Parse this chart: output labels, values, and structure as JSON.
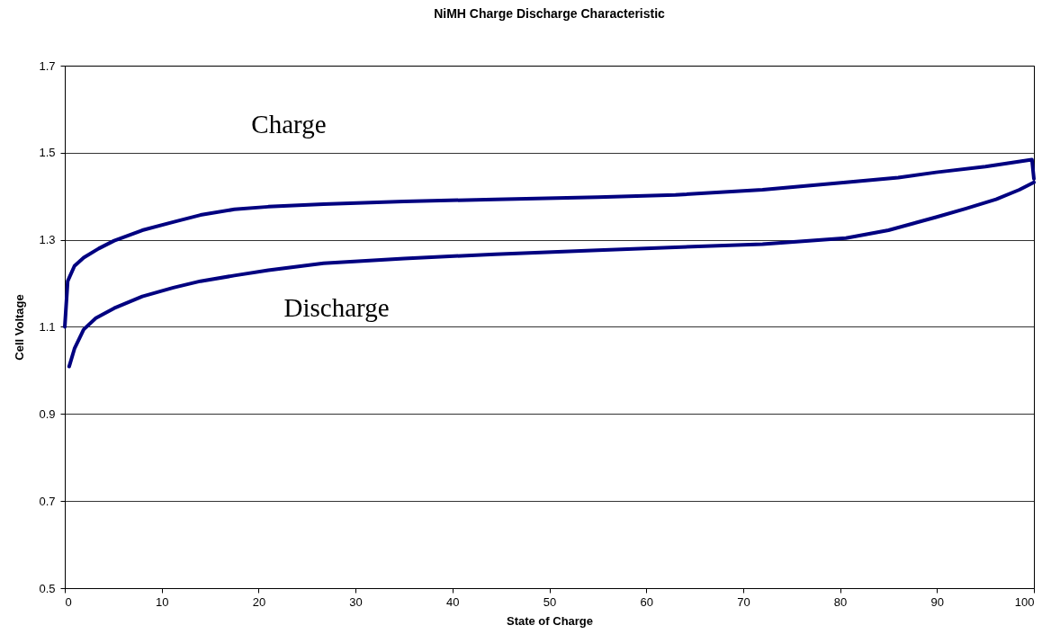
{
  "chart_data": {
    "type": "line",
    "title": "NiMH Charge Discharge Characteristic",
    "xlabel": "State of Charge",
    "ylabel": "Cell Voltage",
    "series": [
      {
        "name": "Charge",
        "color": "#000080",
        "x": [
          0,
          0.3,
          1,
          1.95,
          3.5,
          5.1,
          8,
          11.2,
          14,
          17.5,
          21,
          26.7,
          35,
          44.4,
          55,
          63,
          72,
          80.6,
          86,
          89.9,
          95,
          99.8,
          100
        ],
        "values": [
          1.1,
          1.205,
          1.24,
          1.259,
          1.28,
          1.298,
          1.322,
          1.341,
          1.357,
          1.37,
          1.376,
          1.382,
          1.388,
          1.393,
          1.398,
          1.403,
          1.415,
          1.432,
          1.443,
          1.455,
          1.468,
          1.484,
          1.44
        ]
      },
      {
        "name": "Discharge",
        "color": "#000080",
        "x": [
          0.45,
          1,
          1.95,
          3.2,
          5.1,
          8,
          11.2,
          14,
          17.5,
          21,
          26.7,
          35,
          44.4,
          55,
          63,
          72,
          80.6,
          85,
          89.9,
          93,
          96.1,
          98.5,
          100
        ],
        "values": [
          1.009,
          1.05,
          1.094,
          1.12,
          1.143,
          1.17,
          1.19,
          1.205,
          1.218,
          1.23,
          1.246,
          1.257,
          1.267,
          1.276,
          1.283,
          1.29,
          1.304,
          1.322,
          1.352,
          1.372,
          1.393,
          1.415,
          1.432
        ]
      }
    ],
    "xlim": [
      0,
      100
    ],
    "xticks": [
      0,
      10,
      20,
      30,
      40,
      50,
      60,
      70,
      80,
      90,
      100
    ],
    "ylim": [
      0.5,
      1.7
    ],
    "yticks": [
      0.5,
      0.7,
      0.9,
      1.1,
      1.3,
      1.5,
      1.7
    ],
    "grid": "y",
    "legend": false
  }
}
